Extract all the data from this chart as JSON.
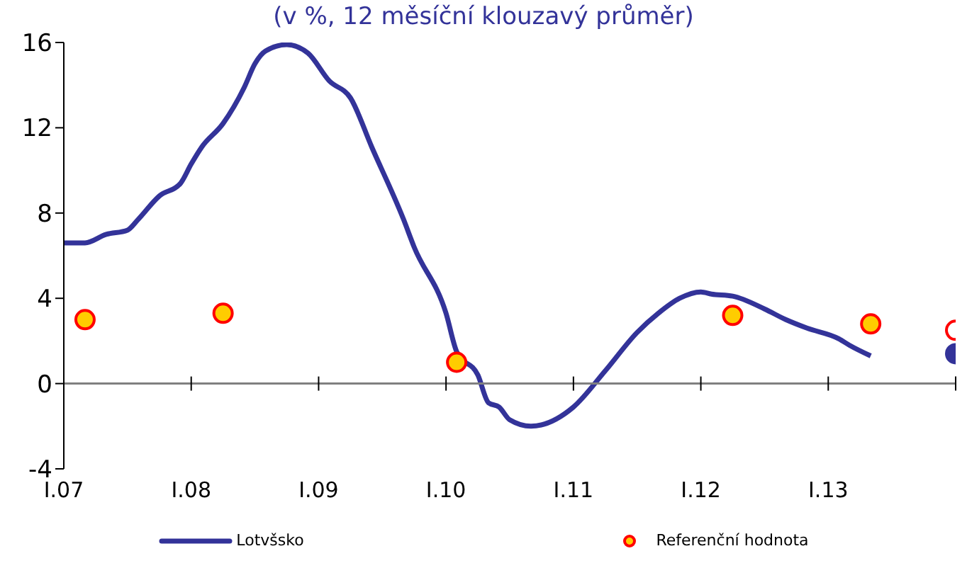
{
  "chart_data": {
    "type": "line",
    "subtitle": "(v %, 12 měsíční klouzavý průměr)",
    "xlim": [
      "2007-01",
      "2014-01"
    ],
    "xticks": [
      {
        "value": "2007-01",
        "label": "I.07"
      },
      {
        "value": "2008-01",
        "label": "I.08"
      },
      {
        "value": "2009-01",
        "label": "I.09"
      },
      {
        "value": "2010-01",
        "label": "I.10"
      },
      {
        "value": "2011-01",
        "label": "I.11"
      },
      {
        "value": "2012-01",
        "label": "I.12"
      },
      {
        "value": "2013-01",
        "label": "I.13"
      },
      {
        "value": "2014-01",
        "label": null
      }
    ],
    "ylim": [
      -4,
      16
    ],
    "yticks": [
      -4,
      0,
      4,
      8,
      12,
      16
    ],
    "legend": "bottom",
    "series": [
      {
        "name": "Lotvšsko",
        "color": "#333399",
        "x": [
          "2007-01",
          "2007-03",
          "2007-05",
          "2007-07",
          "2007-08",
          "2007-10",
          "2007-12",
          "2008-01",
          "2008-02",
          "2008-04",
          "2008-06",
          "2008-07",
          "2008-08",
          "2008-10",
          "2008-12",
          "2009-02",
          "2009-04",
          "2009-06",
          "2009-09",
          "2009-10",
          "2010-01",
          "2010-02",
          "2010-04",
          "2010-05",
          "2010-06",
          "2010-07",
          "2010-09",
          "2011-01",
          "2011-04",
          "2011-07",
          "2011-09",
          "2011-11",
          "2012-01",
          "2012-02",
          "2012-04",
          "2012-07",
          "2012-09",
          "2012-11",
          "2013-02",
          "2013-03",
          "2013-05"
        ],
        "values": [
          6.6,
          6.6,
          7.0,
          7.2,
          7.7,
          8.8,
          9.4,
          10.3,
          11.1,
          12.2,
          13.9,
          15.0,
          15.6,
          15.9,
          15.5,
          14.2,
          13.4,
          11.1,
          7.7,
          6.4,
          3.3,
          1.5,
          0.4,
          -0.9,
          -1.1,
          -1.7,
          -2.0,
          -1.1,
          0.6,
          2.4,
          3.3,
          4.0,
          4.3,
          4.2,
          4.1,
          3.5,
          3.0,
          2.6,
          2.1,
          1.8,
          1.3
        ]
      },
      {
        "name": "Referenční hodnota",
        "type": "scatter",
        "color": "#ffcc00",
        "x": [
          "2007-03",
          "2008-04",
          "2010-02",
          "2012-04",
          "2013-05"
        ],
        "values": [
          3.0,
          3.3,
          1.0,
          3.2,
          2.8
        ]
      },
      {
        "type": "scatter",
        "color": "#ffffff",
        "x": [
          "2014-01"
        ],
        "values": [
          2.5
        ]
      },
      {
        "type": "scatter",
        "color": "#333399",
        "x": [
          "2014-01"
        ],
        "values": [
          1.4
        ]
      }
    ]
  }
}
